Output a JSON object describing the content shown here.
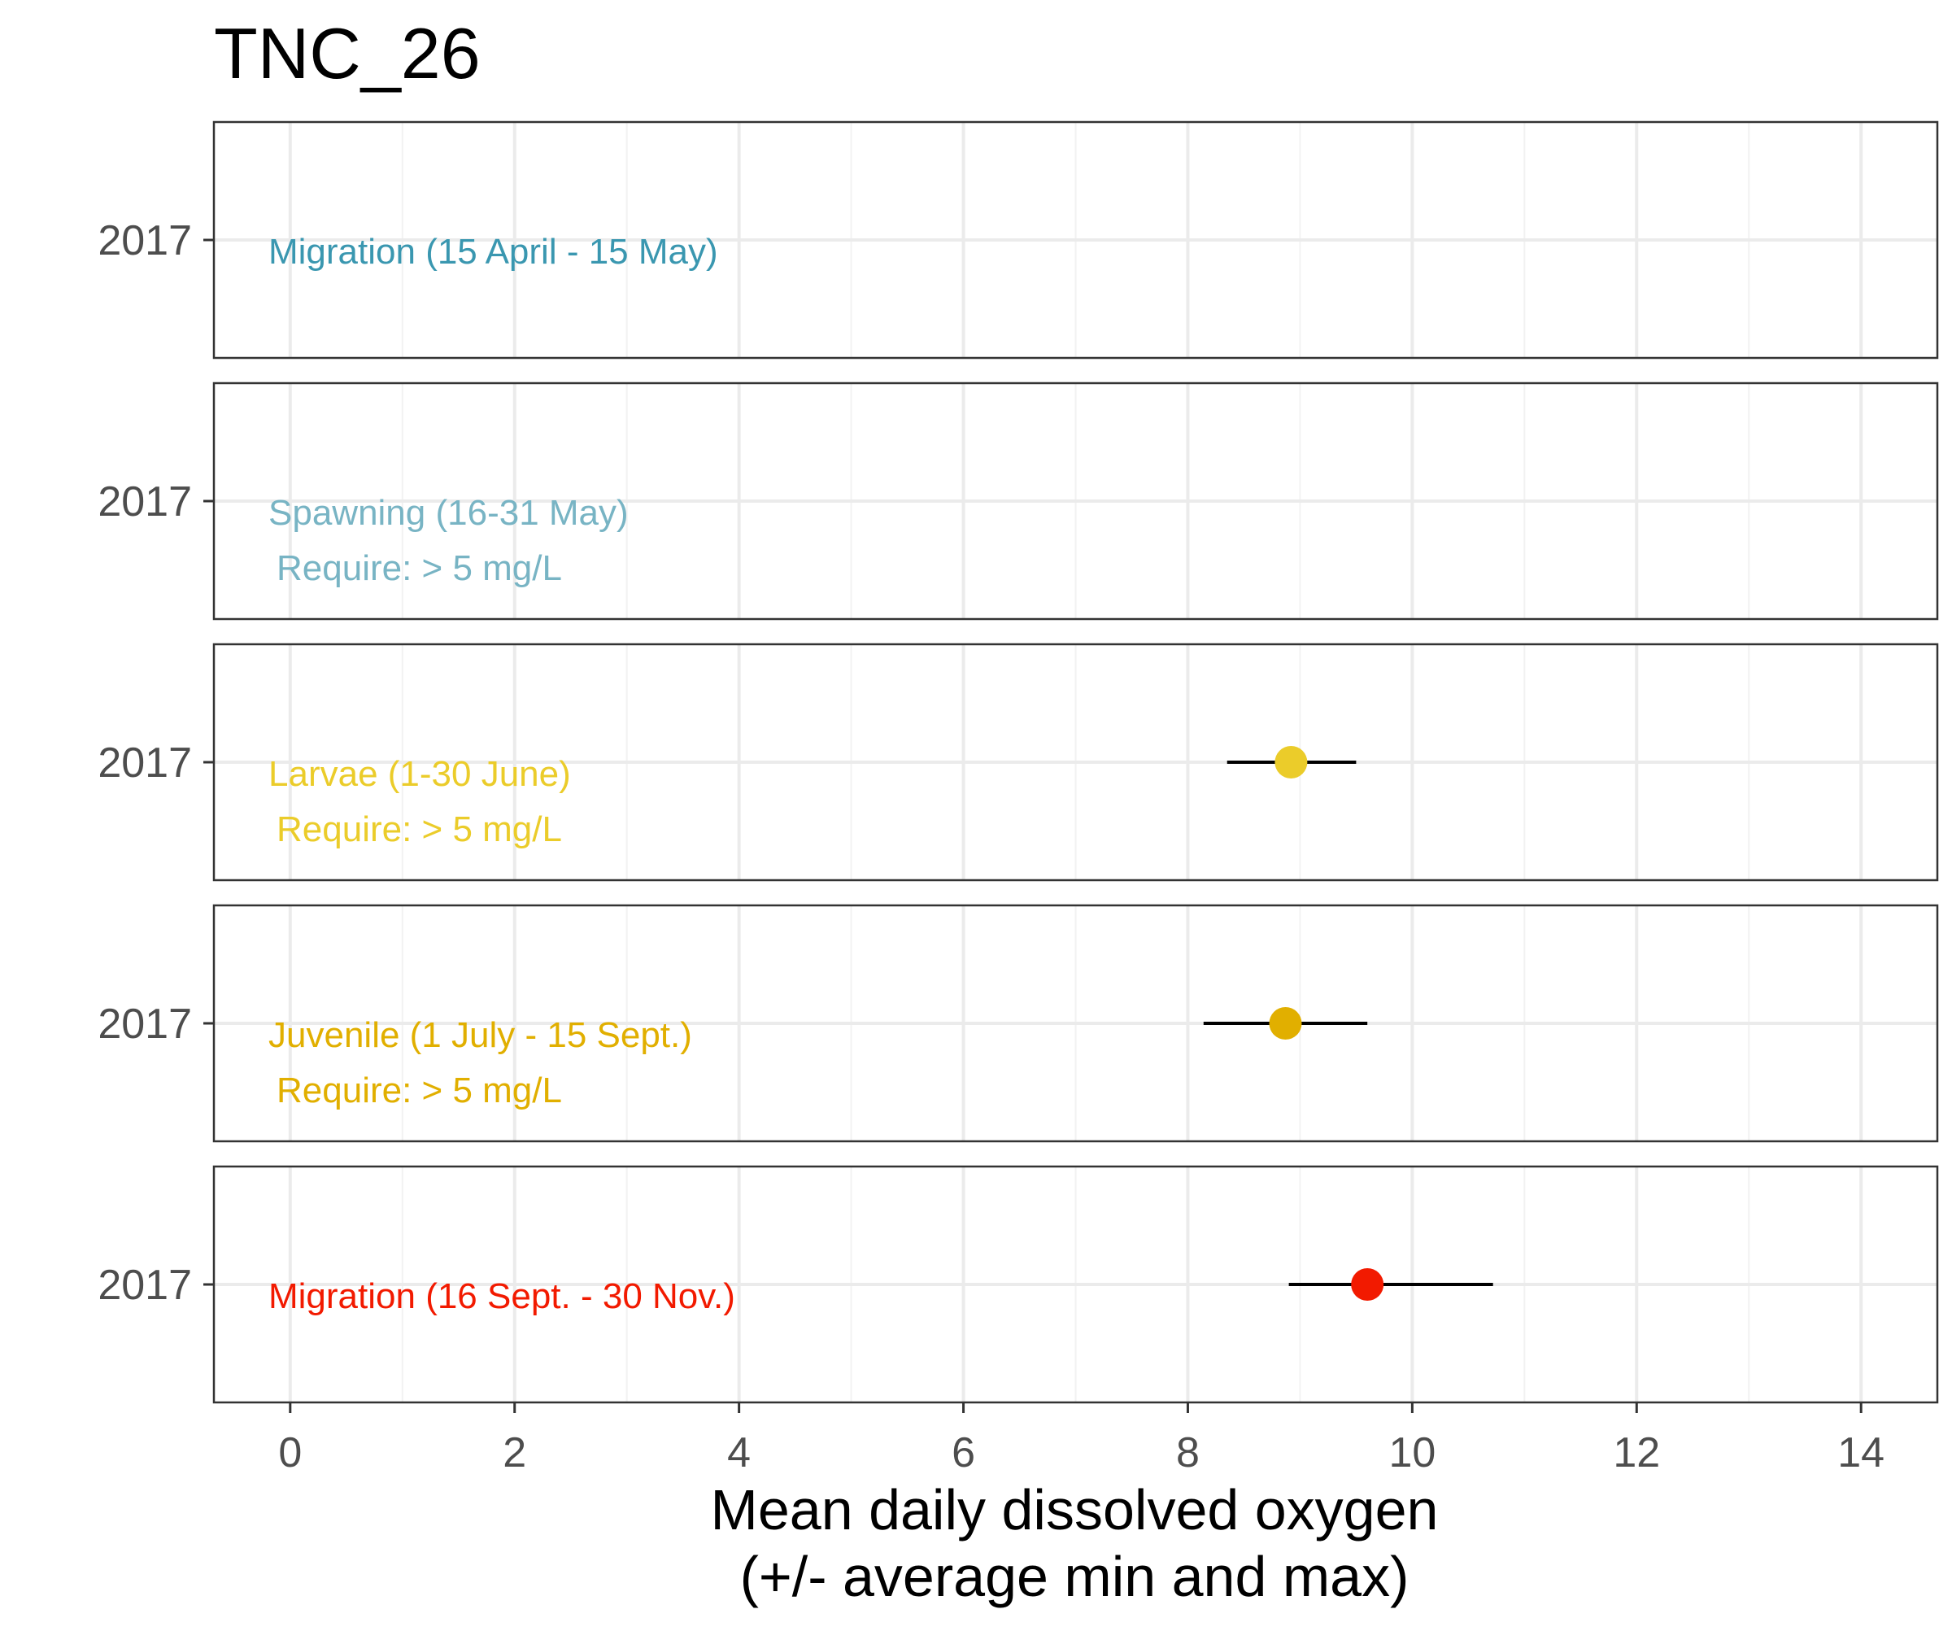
{
  "chart_data": {
    "type": "scatter",
    "title": "TNC_26",
    "xlabel_lines": [
      "Mean daily dissolved oxygen",
      "(+/- average min and max)"
    ],
    "ylabel": "",
    "xlim": [
      -0.68,
      14.68
    ],
    "x_ticks": [
      "0",
      "2",
      "4",
      "6",
      "8",
      "10",
      "12",
      "14"
    ],
    "grid": true,
    "panels": [
      {
        "y_tick": "2017",
        "label": "Migration (15 April - 15 May)",
        "requirement": "",
        "color": "#3a97b0",
        "point": null
      },
      {
        "y_tick": "2017",
        "label": "Spawning (16-31 May)",
        "requirement": "Require: > 5 mg/L",
        "color": "#78b4c4",
        "point": null
      },
      {
        "y_tick": "2017",
        "label": "Larvae (1-30 June)",
        "requirement": "Require: > 5 mg/L",
        "color": "#ebcc2a",
        "point": {
          "mean": 8.92,
          "min": 8.35,
          "max": 9.5
        }
      },
      {
        "y_tick": "2017",
        "label": "Juvenile (1 July - 15 Sept.)",
        "requirement": "Require: > 5 mg/L",
        "color": "#e1af00",
        "point": {
          "mean": 8.87,
          "min": 8.14,
          "max": 9.6
        }
      },
      {
        "y_tick": "2017",
        "label": "Migration (16 Sept. - 30 Nov.)",
        "requirement": "",
        "color": "#f21a00",
        "point": {
          "mean": 9.6,
          "min": 8.9,
          "max": 10.72
        }
      }
    ]
  }
}
